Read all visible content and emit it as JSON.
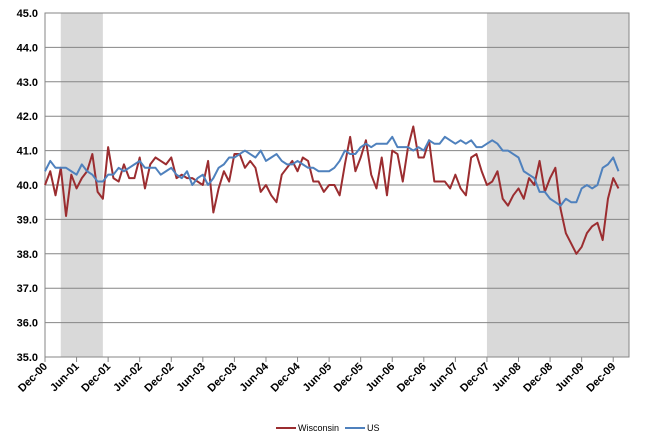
{
  "chart_data": {
    "type": "line",
    "title": "",
    "xlabel": "",
    "ylabel": "",
    "ylim": [
      35.0,
      45.0
    ],
    "y_ticks": [
      "35.0",
      "36.0",
      "37.0",
      "38.0",
      "39.0",
      "40.0",
      "41.0",
      "42.0",
      "43.0",
      "44.0",
      "45.0"
    ],
    "x_ticks": [
      "Dec-00",
      "Jun-01",
      "Dec-01",
      "Jun-02",
      "Dec-02",
      "Jun-03",
      "Dec-03",
      "Jun-04",
      "Dec-04",
      "Jun-05",
      "Dec-05",
      "Jun-06",
      "Dec-06",
      "Jun-07",
      "Dec-07",
      "Jun-08",
      "Dec-08",
      "Jun-09",
      "Dec-09"
    ],
    "x_start": "Dec-00",
    "x_end": "Mar-10",
    "grid": "horizontal",
    "legend_position": "bottom-center",
    "recession_shading": [
      {
        "start": "Mar-01",
        "end": "Nov-01",
        "color": "#d9d9d9"
      },
      {
        "start": "Dec-07",
        "end": "Mar-10",
        "color": "#d9d9d9"
      }
    ],
    "series": [
      {
        "name": "Wisconsin",
        "color": "#9b2d30",
        "values": [
          40.0,
          40.4,
          39.7,
          40.5,
          39.1,
          40.3,
          39.9,
          40.2,
          40.4,
          40.9,
          39.8,
          39.6,
          41.1,
          40.2,
          40.1,
          40.6,
          40.2,
          40.2,
          40.8,
          39.9,
          40.6,
          40.8,
          40.7,
          40.6,
          40.8,
          40.2,
          40.3,
          40.2,
          40.2,
          40.1,
          40.0,
          40.7,
          39.2,
          39.9,
          40.4,
          40.1,
          40.9,
          40.9,
          40.5,
          40.7,
          40.5,
          39.8,
          40.0,
          39.7,
          39.5,
          40.3,
          40.5,
          40.7,
          40.4,
          40.8,
          40.7,
          40.1,
          40.1,
          39.8,
          40.0,
          40.0,
          39.7,
          40.6,
          41.4,
          40.4,
          40.8,
          41.3,
          40.3,
          39.9,
          40.8,
          39.7,
          41.0,
          40.9,
          40.1,
          41.1,
          41.7,
          40.8,
          40.8,
          41.3,
          40.1,
          40.1,
          40.1,
          39.9,
          40.3,
          39.9,
          39.7,
          40.8,
          40.9,
          40.4,
          40.0,
          40.1,
          40.4,
          39.6,
          39.4,
          39.7,
          39.9,
          39.6,
          40.2,
          40.0,
          40.7,
          39.8,
          40.2,
          40.5,
          39.3,
          38.6,
          38.3,
          38.0,
          38.2,
          38.6,
          38.8,
          38.9,
          38.4,
          39.6,
          40.2,
          39.9
        ],
        "markers": false
      },
      {
        "name": "US",
        "color": "#4f81bd",
        "values": [
          40.4,
          40.7,
          40.5,
          40.5,
          40.5,
          40.4,
          40.3,
          40.6,
          40.4,
          40.3,
          40.1,
          40.1,
          40.3,
          40.3,
          40.5,
          40.4,
          40.5,
          40.6,
          40.7,
          40.5,
          40.5,
          40.5,
          40.3,
          40.4,
          40.5,
          40.3,
          40.2,
          40.4,
          40.0,
          40.2,
          40.3,
          40.0,
          40.2,
          40.5,
          40.6,
          40.8,
          40.8,
          40.9,
          41.0,
          40.9,
          40.8,
          41.0,
          40.7,
          40.8,
          40.9,
          40.7,
          40.6,
          40.6,
          40.7,
          40.6,
          40.5,
          40.5,
          40.4,
          40.4,
          40.4,
          40.5,
          40.7,
          41.0,
          40.9,
          40.9,
          41.1,
          41.2,
          41.1,
          41.2,
          41.2,
          41.2,
          41.4,
          41.1,
          41.1,
          41.1,
          41.0,
          41.1,
          41.0,
          41.3,
          41.2,
          41.2,
          41.4,
          41.3,
          41.2,
          41.3,
          41.2,
          41.3,
          41.1,
          41.1,
          41.2,
          41.3,
          41.2,
          41.0,
          41.0,
          40.9,
          40.8,
          40.4,
          40.3,
          40.2,
          39.8,
          39.8,
          39.6,
          39.5,
          39.4,
          39.6,
          39.5,
          39.5,
          39.9,
          40.0,
          39.9,
          40.0,
          40.5,
          40.6,
          40.8,
          40.4
        ],
        "markers": false
      }
    ]
  }
}
